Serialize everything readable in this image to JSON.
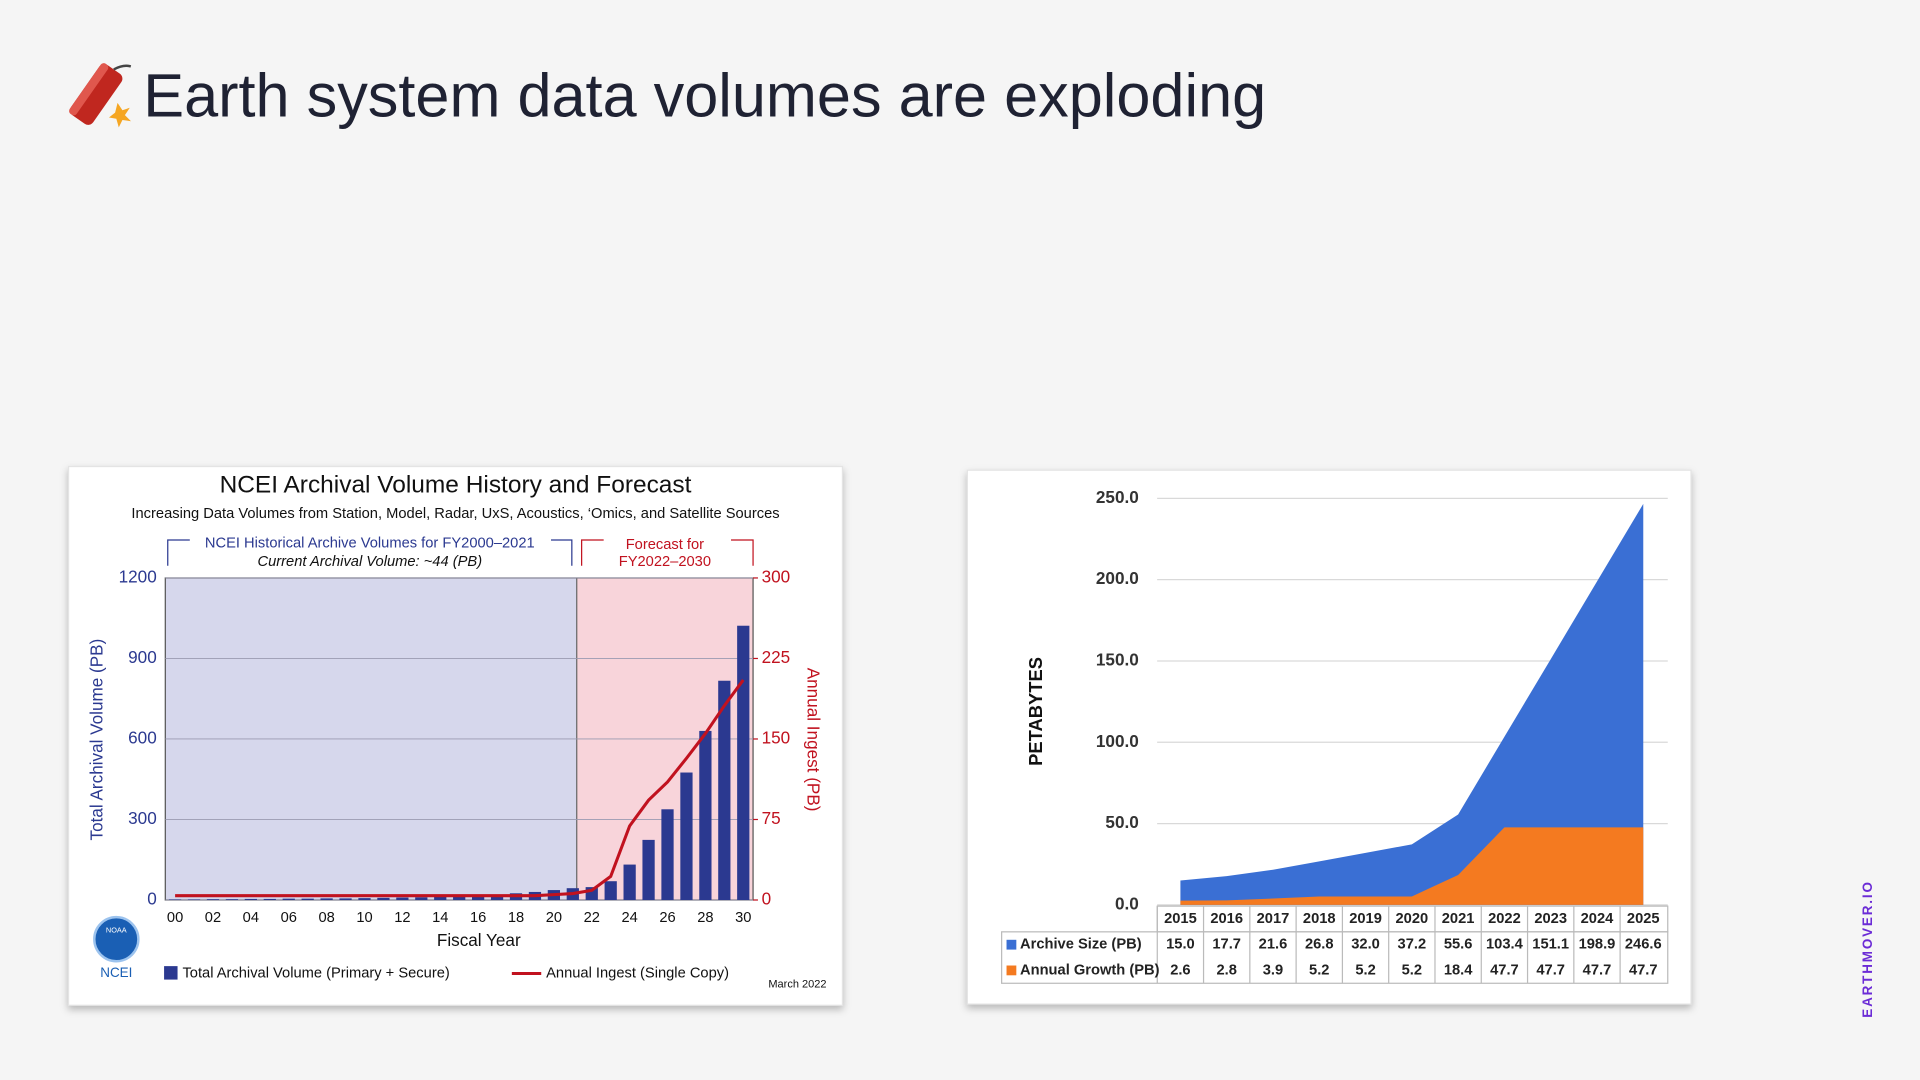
{
  "slide": {
    "title": "Earth system data volumes are exploding",
    "watermark": "EARTHMOVER.IO"
  },
  "chart_data": [
    {
      "type": "bar_line",
      "title": "NCEI Archival Volume History and Forecast",
      "subtitle": "Increasing Data Volumes from Station, Model, Radar, UxS, Acoustics, ‘Omics, and Satellite Sources",
      "historical_note": "NCEI Historical Archive Volumes for FY2000–2021",
      "current_volume_note": "Current Archival Volume: ~44 (PB)",
      "forecast_note": [
        "Forecast for",
        "FY2022–2030"
      ],
      "date_note": "March 2022",
      "logo_badge": "NOAA",
      "logo_text": "NCEI",
      "xlabel": "Fiscal Year",
      "ylabel": "Total Archival Volume (PB)",
      "y2label": "Annual Ingest (PB)",
      "categories": [
        "00",
        null,
        "02",
        null,
        "04",
        null,
        "06",
        null,
        "08",
        null,
        "10",
        null,
        "12",
        null,
        "14",
        null,
        "16",
        null,
        "18",
        null,
        "20",
        null,
        "22",
        null,
        "24",
        null,
        "26",
        null,
        "28",
        null,
        "30"
      ],
      "ylim": [
        0,
        1200
      ],
      "yticks": [
        0,
        300,
        600,
        900,
        1200
      ],
      "y2lim": [
        0,
        300
      ],
      "y2ticks": [
        0,
        75,
        150,
        225,
        300
      ],
      "grid": true,
      "series": [
        {
          "name": "Total Archival Volume (Primary + Secure)",
          "type": "bar",
          "color": "#2b3990",
          "values": [
            2,
            2,
            3,
            3,
            4,
            4,
            5,
            5,
            6,
            6,
            7,
            8,
            9,
            10,
            12,
            14,
            17,
            20,
            25,
            30,
            37,
            44,
            48,
            70,
            132,
            224,
            338,
            475,
            630,
            817,
            1022
          ]
        },
        {
          "name": "Annual Ingest (Single Copy)",
          "type": "line",
          "color": "#c1121f",
          "axis": "y2",
          "values": [
            4,
            4,
            4,
            4,
            4,
            4,
            4,
            4,
            4,
            4,
            4,
            4,
            4,
            4,
            4,
            4,
            4,
            4,
            4,
            4,
            5,
            6,
            9,
            22,
            69,
            93,
            110,
            132,
            155,
            181,
            205
          ]
        }
      ]
    },
    {
      "type": "area",
      "ylabel": "PETABYTES",
      "categories": [
        "2015",
        "2016",
        "2017",
        "2018",
        "2019",
        "2020",
        "2021",
        "2022",
        "2023",
        "2024",
        "2025"
      ],
      "ylim": [
        0,
        250
      ],
      "yticks": [
        {
          "value": 0,
          "label": "0.0"
        },
        {
          "value": 50,
          "label": "50.0"
        },
        {
          "value": 100,
          "label": "100.0"
        },
        {
          "value": 150,
          "label": "150.0"
        },
        {
          "value": 200,
          "label": "200.0"
        },
        {
          "value": 250,
          "label": "250.0"
        }
      ],
      "grid": true,
      "series": [
        {
          "name": "Archive Size (PB)",
          "color": "#3a6fd4",
          "values": [
            15,
            17.7,
            21.6,
            26.8,
            32,
            37.2,
            55.6,
            103.4,
            151.1,
            198.9,
            246.6
          ],
          "value_labels": [
            "15.0",
            "17.7",
            "21.6",
            "26.8",
            "32.0",
            "37.2",
            "55.6",
            "103.4",
            "151.1",
            "198.9",
            "246.6"
          ]
        },
        {
          "name": "Annual Growth (PB)",
          "color": "#f47a20",
          "values": [
            2.6,
            2.8,
            3.9,
            5.2,
            5.2,
            5.2,
            18.4,
            47.7,
            47.7,
            47.7,
            47.7
          ],
          "value_labels": [
            "2.6",
            "2.8",
            "3.9",
            "5.2",
            "5.2",
            "5.2",
            "18.4",
            "47.7",
            "47.7",
            "47.7",
            "47.7"
          ]
        }
      ]
    }
  ]
}
